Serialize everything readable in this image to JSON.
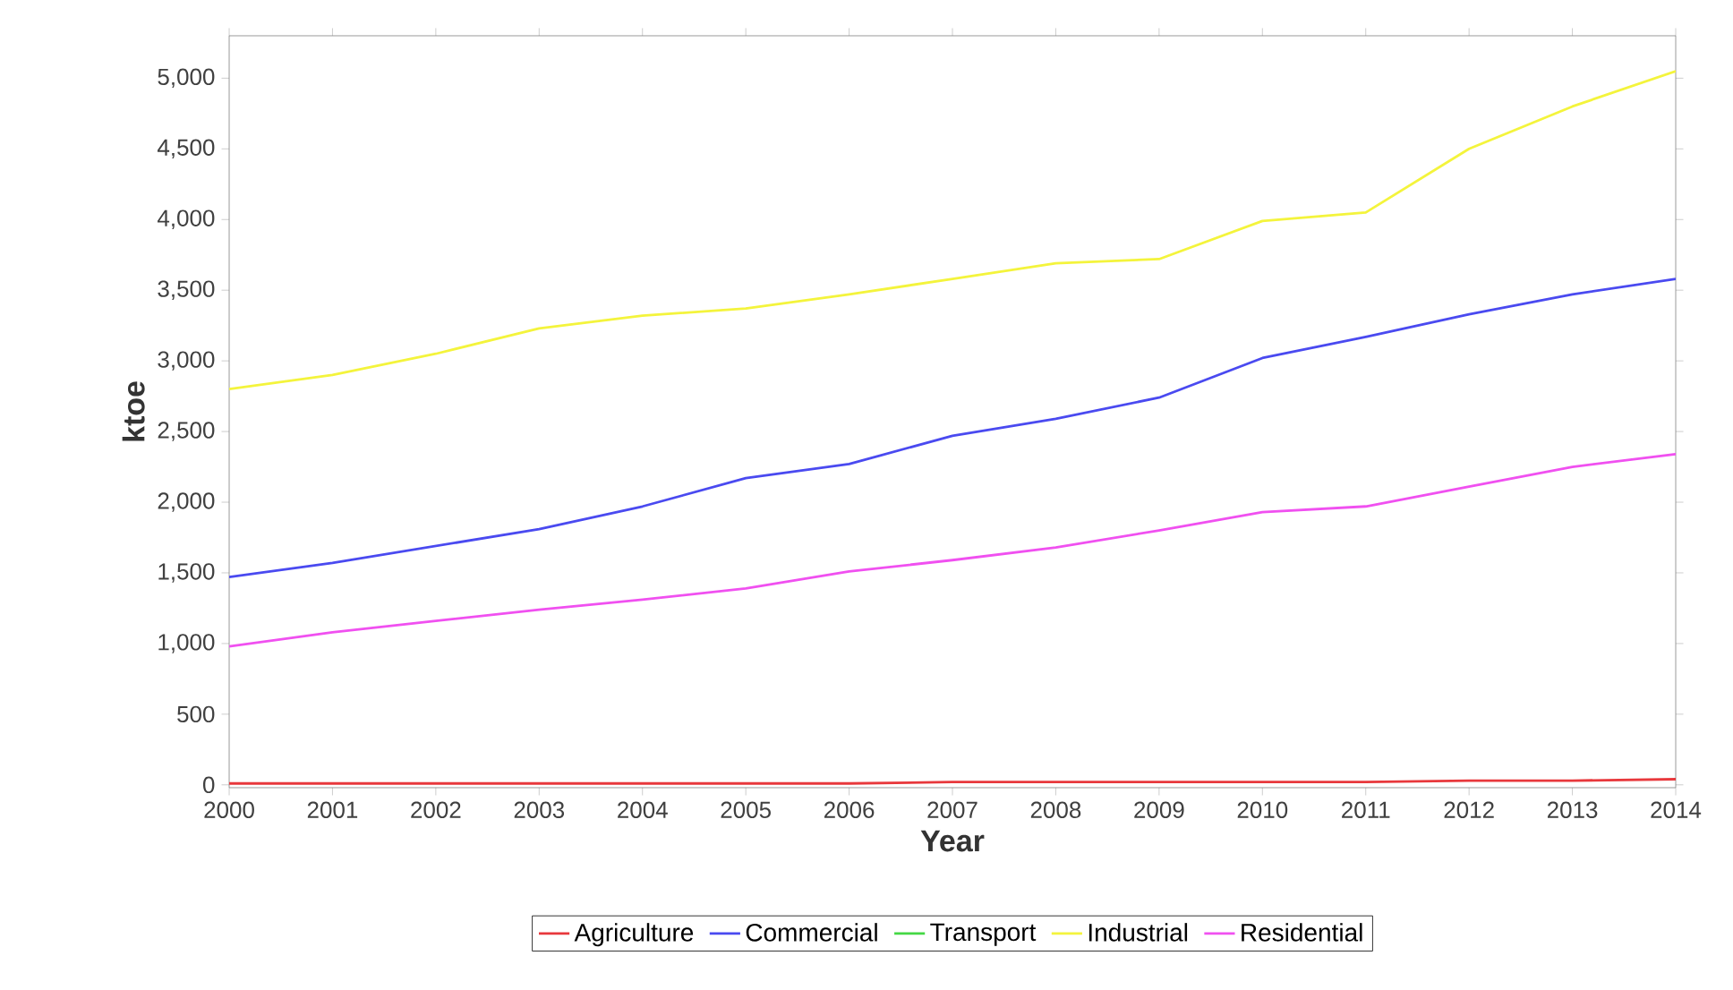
{
  "chart_data": {
    "type": "line",
    "xlabel": "Year",
    "ylabel": "ktoe",
    "x": [
      2000,
      2001,
      2002,
      2003,
      2004,
      2005,
      2006,
      2007,
      2008,
      2009,
      2010,
      2011,
      2012,
      2013,
      2014
    ],
    "xlim": [
      2000,
      2014
    ],
    "xticks": [
      2000,
      2001,
      2002,
      2003,
      2004,
      2005,
      2006,
      2007,
      2008,
      2009,
      2010,
      2011,
      2012,
      2013,
      2014
    ],
    "ylim": [
      -20,
      5300
    ],
    "yticks": [
      {
        "value": 0,
        "label": "0"
      },
      {
        "value": 500,
        "label": "500"
      },
      {
        "value": 1000,
        "label": "1,000"
      },
      {
        "value": 1500,
        "label": "1,500"
      },
      {
        "value": 2000,
        "label": "2,000"
      },
      {
        "value": 2500,
        "label": "2,500"
      },
      {
        "value": 3000,
        "label": "3,000"
      },
      {
        "value": 3500,
        "label": "3,500"
      },
      {
        "value": 4000,
        "label": "4,000"
      },
      {
        "value": 4500,
        "label": "4,500"
      },
      {
        "value": 5000,
        "label": "5,000"
      }
    ],
    "grid": false,
    "legend": "bottom",
    "marker": "none",
    "line_style": "solid",
    "series": [
      {
        "name": "Agriculture",
        "color": "#e8383c",
        "values": [
          10,
          10,
          10,
          10,
          10,
          10,
          10,
          20,
          20,
          20,
          20,
          20,
          30,
          30,
          40
        ]
      },
      {
        "name": "Commercial",
        "color": "#4a4af0",
        "values": [
          1470,
          1570,
          1690,
          1810,
          1970,
          2170,
          2270,
          2470,
          2590,
          2740,
          3020,
          3170,
          3330,
          3470,
          3580
        ]
      },
      {
        "name": "Transport",
        "color": "#44d844",
        "values": [
          null,
          null,
          null,
          null,
          null,
          null,
          null,
          null,
          null,
          null,
          null,
          null,
          null,
          null,
          null
        ]
      },
      {
        "name": "Industrial",
        "color": "#f4f43c",
        "values": [
          2800,
          2900,
          3050,
          3230,
          3320,
          3370,
          3470,
          3580,
          3690,
          3720,
          3990,
          4050,
          4500,
          4800,
          5050
        ]
      },
      {
        "name": "Residential",
        "color": "#f050f0",
        "values": [
          980,
          1080,
          1160,
          1240,
          1310,
          1390,
          1510,
          1590,
          1680,
          1800,
          1930,
          1970,
          2110,
          2250,
          2340
        ]
      }
    ]
  }
}
